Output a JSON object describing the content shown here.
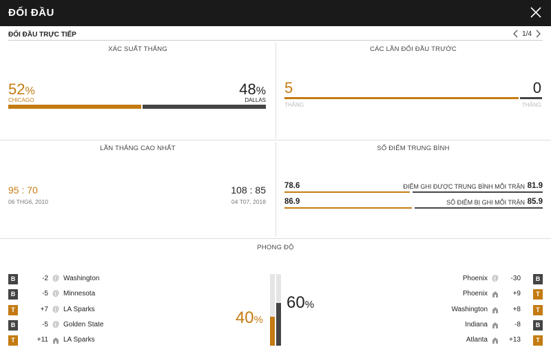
{
  "header": {
    "title": "ĐỐI ĐẦU"
  },
  "subhead": {
    "title": "ĐỐI ĐẦU TRỰC TIẾP",
    "page": "1/4"
  },
  "win_prob": {
    "title": "XÁC SUẤT THẮNG",
    "left_value": "52",
    "left_pct": "%",
    "left_team": "CHICAGO",
    "right_value": "48",
    "right_pct": "%",
    "right_team": "DALLAS",
    "left_share": 0.52
  },
  "past": {
    "title": "CÁC LẦN ĐỐI ĐẦU TRƯỚC",
    "left_value": "5",
    "left_label": "THẮNG",
    "right_value": "0",
    "right_label": "THẮNG"
  },
  "biggest": {
    "title": "LẦN THẮNG CAO NHẤT",
    "left_score": "95 : 70",
    "left_date": "06 THG6, 2010",
    "right_score": "108 : 85",
    "right_date": "04 T07, 2018"
  },
  "avg": {
    "title": "SỐ ĐIỂM TRUNG BÌNH",
    "rows": [
      {
        "left": "78.6",
        "label": "ĐIỂM GHI ĐƯỢC TRUNG BÌNH MỖI TRẬN",
        "right": "81.9"
      },
      {
        "left": "86.9",
        "label": "SỐ ĐIỂM BỊ GHI MỖI TRẬN",
        "right": "85.9"
      }
    ]
  },
  "form": {
    "title": "PHONG ĐỘ",
    "left_pct": "40",
    "right_pct": "60",
    "pct_sign": "%",
    "left_fill": 0.4,
    "right_fill": 0.6,
    "left": [
      {
        "result": "B",
        "score": "-2",
        "venue": "@",
        "team": "Washington"
      },
      {
        "result": "B",
        "score": "-5",
        "venue": "@",
        "team": "Minnesota"
      },
      {
        "result": "T",
        "score": "+7",
        "venue": "@",
        "team": "LA Sparks"
      },
      {
        "result": "B",
        "score": "-5",
        "venue": "@",
        "team": "Golden State"
      },
      {
        "result": "T",
        "score": "+11",
        "venue": "home",
        "team": "LA Sparks"
      }
    ],
    "right": [
      {
        "result": "B",
        "score": "-30",
        "venue": "@",
        "team": "Phoenix"
      },
      {
        "result": "T",
        "score": "+9",
        "venue": "home",
        "team": "Phoenix"
      },
      {
        "result": "T",
        "score": "+8",
        "venue": "home",
        "team": "Washington"
      },
      {
        "result": "B",
        "score": "-8",
        "venue": "home",
        "team": "Indiana"
      },
      {
        "result": "T",
        "score": "+13",
        "venue": "home",
        "team": "Atlanta"
      }
    ]
  },
  "colors": {
    "accent": "#c47b12",
    "dark": "#444444",
    "topbar": "#1a1a1a"
  }
}
